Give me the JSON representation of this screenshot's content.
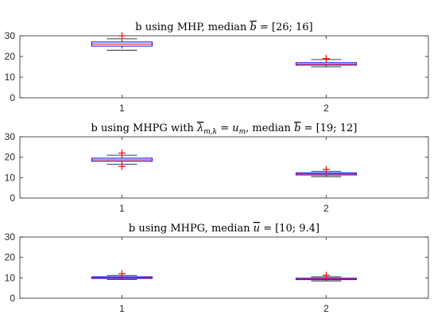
{
  "chart_data": [
    {
      "type": "box",
      "title_parts": [
        {
          "t": "b using MHP, median "
        },
        {
          "t": "b",
          "italic": true,
          "bar": true
        },
        {
          "t": " = [26; 16]"
        }
      ],
      "categories": [
        "1",
        "2"
      ],
      "ylim": [
        0,
        30
      ],
      "yticks": [
        "0",
        "10",
        "20",
        "30"
      ],
      "grid": false,
      "boxes": [
        {
          "whislo": 23,
          "q1": 25,
          "med": 26,
          "q3": 27,
          "whishi": 28.5,
          "outliers": [
            30
          ]
        },
        {
          "whislo": 15,
          "q1": 15.8,
          "med": 16.3,
          "q3": 17,
          "whishi": 18.5,
          "outliers": [
            19
          ]
        }
      ]
    },
    {
      "type": "box",
      "title_parts": [
        {
          "t": "b using MHPG with "
        },
        {
          "t": "λ",
          "italic": true,
          "bar": true
        },
        {
          "t": "m,k",
          "italic": true,
          "sub": true
        },
        {
          "t": " = "
        },
        {
          "t": "u",
          "italic": true
        },
        {
          "t": "m",
          "italic": true,
          "sub": true
        },
        {
          "t": ", median "
        },
        {
          "t": "b",
          "italic": true,
          "bar": true
        },
        {
          "t": " = [19; 12]"
        }
      ],
      "categories": [
        "1",
        "2"
      ],
      "ylim": [
        0,
        30
      ],
      "yticks": [
        "0",
        "10",
        "20",
        "30"
      ],
      "grid": false,
      "boxes": [
        {
          "whislo": 16.5,
          "q1": 18,
          "med": 18.7,
          "q3": 19.5,
          "whishi": 21,
          "outliers": [
            15.5,
            22
          ]
        },
        {
          "whislo": 10.5,
          "q1": 11.3,
          "med": 11.8,
          "q3": 12.3,
          "whishi": 13,
          "outliers": [
            14
          ]
        }
      ]
    },
    {
      "type": "box",
      "title_parts": [
        {
          "t": "b using MHPG, median "
        },
        {
          "t": "u",
          "italic": true,
          "bar": true
        },
        {
          "t": " = [10; 9.4]"
        }
      ],
      "categories": [
        "1",
        "2"
      ],
      "ylim": [
        0,
        30
      ],
      "yticks": [
        "0",
        "10",
        "20",
        "30"
      ],
      "grid": false,
      "boxes": [
        {
          "whislo": 9.2,
          "q1": 9.7,
          "med": 10.1,
          "q3": 10.5,
          "whishi": 11.2,
          "outliers": [
            12
          ]
        },
        {
          "whislo": 8.5,
          "q1": 9.1,
          "med": 9.4,
          "q3": 9.8,
          "whishi": 10.5,
          "outliers": [
            11.2
          ]
        }
      ]
    }
  ],
  "colors": {
    "box": "#0000ff",
    "median": "#ff0000",
    "whisker": "#000000",
    "outlier": "#ff0000",
    "axis": "#262626"
  }
}
